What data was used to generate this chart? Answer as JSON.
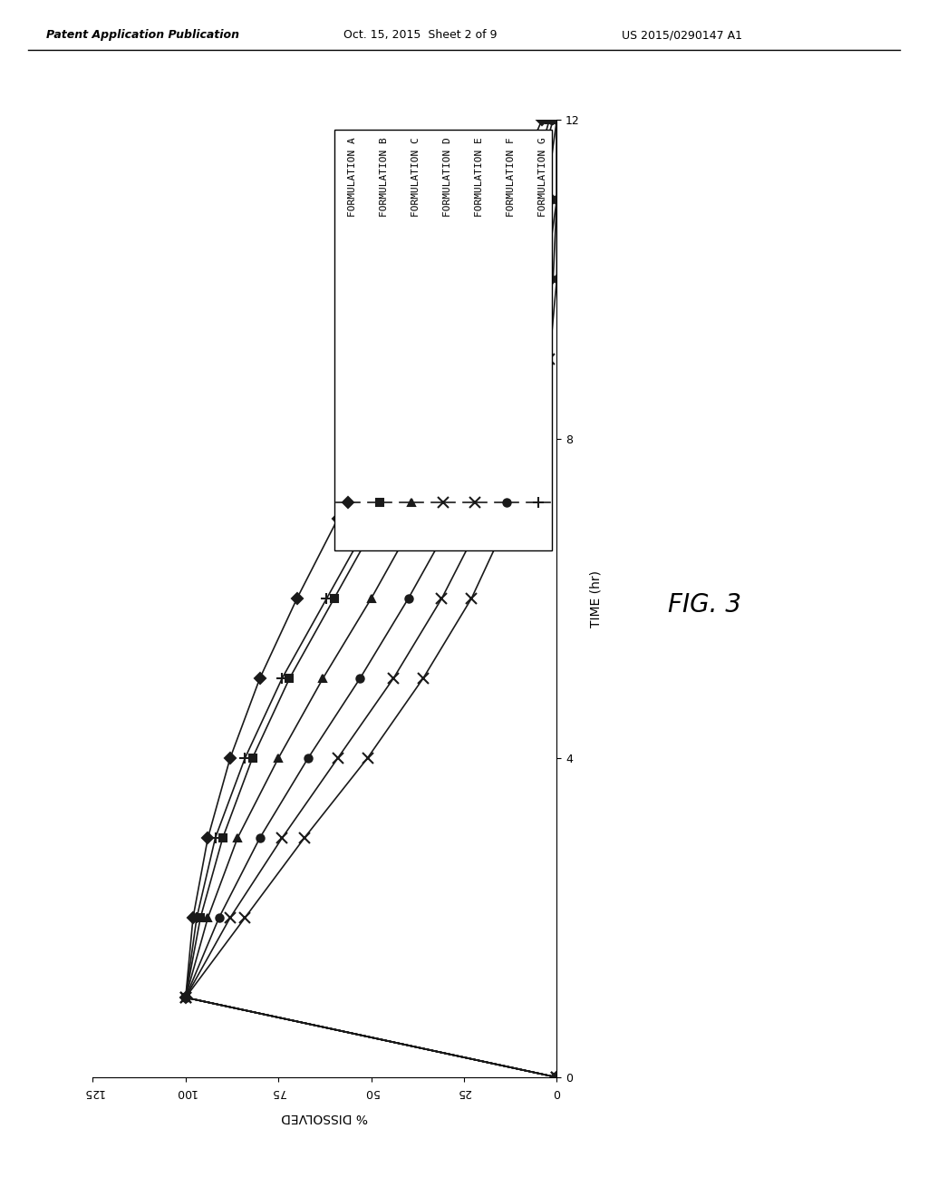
{
  "header_left": "Patent Application Publication",
  "header_mid": "Oct. 15, 2015  Sheet 2 of 9",
  "header_right": "US 2015/0290147 A1",
  "fig_label": "FIG. 3",
  "x_label": "TIME (hr)",
  "y_label": "% DISSOLVED",
  "xlim": [
    0,
    12
  ],
  "ylim": [
    0,
    125
  ],
  "xticks": [
    0,
    4,
    8,
    12
  ],
  "yticks": [
    0,
    25,
    50,
    75,
    100,
    125
  ],
  "series": [
    {
      "label": "FORMULATION A",
      "marker": "D",
      "markersize": 6,
      "time": [
        0,
        1,
        2,
        3,
        4,
        5,
        6,
        7,
        8,
        9,
        10,
        11,
        12
      ],
      "pct": [
        0,
        100,
        98,
        94,
        88,
        80,
        70,
        59,
        47,
        35,
        24,
        13,
        4
      ]
    },
    {
      "label": "FORMULATION B",
      "marker": "s",
      "markersize": 6,
      "time": [
        0,
        1,
        2,
        3,
        4,
        5,
        6,
        7,
        8,
        9,
        10,
        11,
        12
      ],
      "pct": [
        0,
        100,
        96,
        90,
        82,
        72,
        60,
        48,
        37,
        26,
        16,
        8,
        2
      ]
    },
    {
      "label": "FORMULATION C",
      "marker": "^",
      "markersize": 6,
      "time": [
        0,
        1,
        2,
        3,
        4,
        5,
        6,
        7,
        8,
        9,
        10,
        11,
        12
      ],
      "pct": [
        0,
        100,
        94,
        86,
        75,
        63,
        50,
        38,
        27,
        17,
        9,
        3,
        0
      ]
    },
    {
      "label": "FORMULATION D",
      "marker": "x",
      "markersize": 8,
      "time": [
        0,
        1,
        2,
        3,
        4,
        5,
        6,
        7,
        8,
        9,
        10,
        11,
        12
      ],
      "pct": [
        0,
        100,
        88,
        74,
        59,
        44,
        31,
        20,
        11,
        5,
        1,
        0,
        0
      ]
    },
    {
      "label": "FORMULATION E",
      "marker": "x",
      "markersize": 8,
      "time": [
        0,
        1,
        2,
        3,
        4,
        5,
        6,
        7,
        8,
        9,
        10,
        11,
        12
      ],
      "pct": [
        0,
        100,
        84,
        68,
        51,
        36,
        23,
        13,
        6,
        2,
        0,
        0,
        0
      ]
    },
    {
      "label": "FORMULATION F",
      "marker": "o",
      "markersize": 6,
      "time": [
        0,
        1,
        2,
        3,
        4,
        5,
        6,
        7,
        8,
        9,
        10,
        11,
        12
      ],
      "pct": [
        0,
        100,
        91,
        80,
        67,
        53,
        40,
        28,
        18,
        9,
        3,
        0,
        0
      ]
    },
    {
      "label": "FORMULATION G",
      "marker": "+",
      "markersize": 9,
      "time": [
        0,
        1,
        2,
        3,
        4,
        5,
        6,
        7,
        8,
        9,
        10,
        11,
        12
      ],
      "pct": [
        0,
        100,
        97,
        92,
        84,
        74,
        62,
        50,
        38,
        27,
        16,
        7,
        1
      ]
    }
  ],
  "line_color": "#1a1a1a",
  "bg_color": "#ffffff",
  "header_fontsize": 9,
  "axis_label_fontsize": 10,
  "tick_fontsize": 9,
  "legend_fontsize": 8,
  "fig_label_fontsize": 20
}
